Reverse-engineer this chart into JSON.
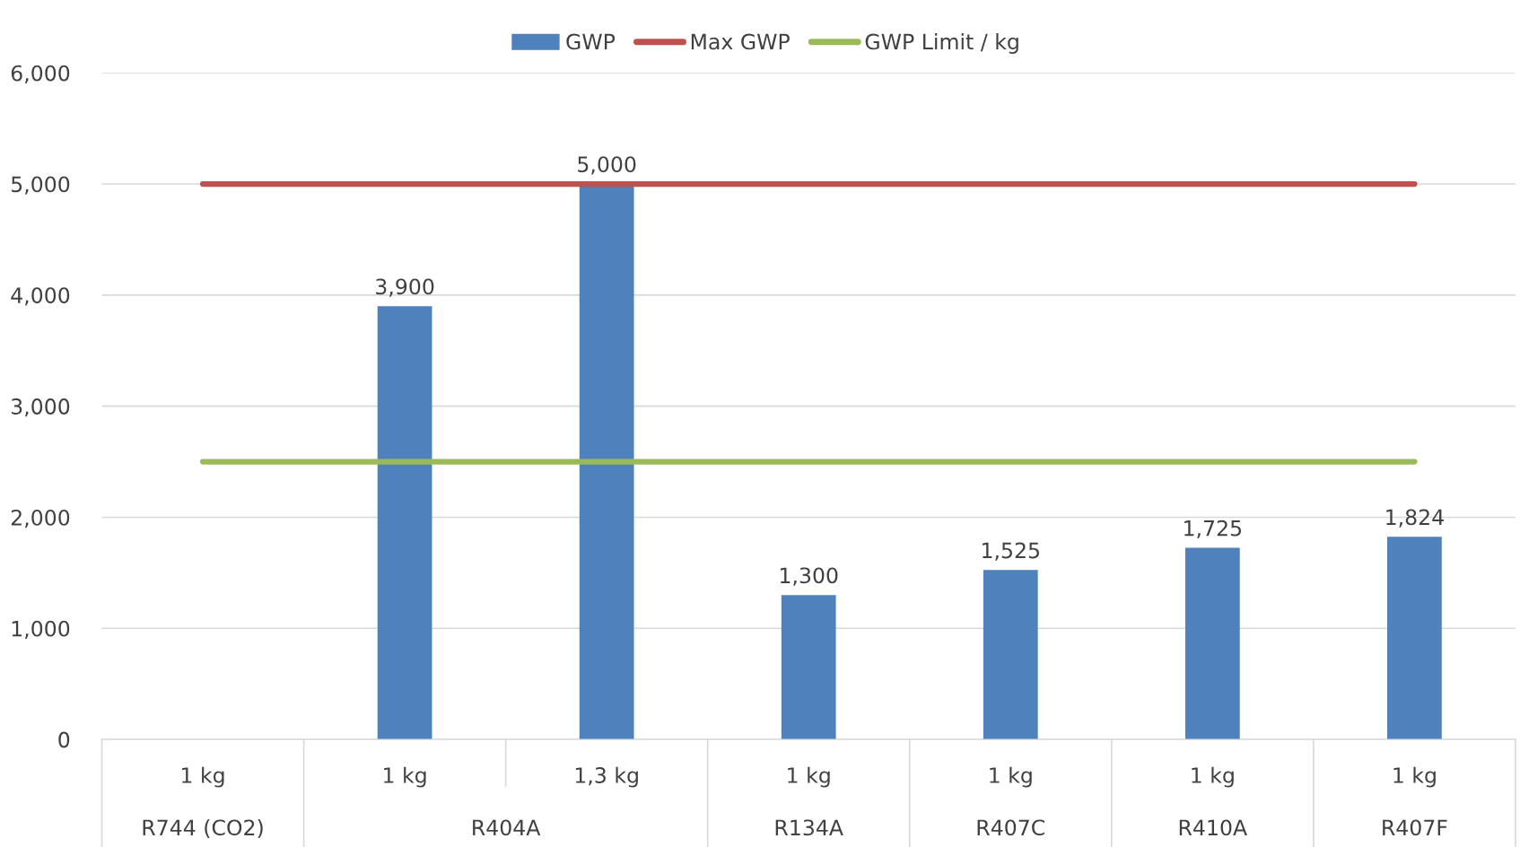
{
  "chart_data": {
    "type": "bar",
    "categories": [
      "1 kg",
      "1 kg",
      "1,3 kg",
      "1 kg",
      "1 kg",
      "1 kg",
      "1 kg"
    ],
    "annotations": [
      "R744 (CO2)",
      "R404A",
      "R134A",
      "R407C",
      "R410A",
      "R407F"
    ],
    "series": [
      {
        "name": "GWP",
        "color": "#4f81bd",
        "values": [
          null,
          3900,
          5000,
          1300,
          1525,
          1725,
          1824
        ],
        "value_labels": [
          null,
          "3,900",
          "5,000",
          "1,300",
          "1,525",
          "1,725",
          "1,824"
        ]
      },
      {
        "name": "Max GWP",
        "type": "line",
        "color": "#c0504d",
        "values": [
          5000,
          5000,
          5000,
          5000,
          5000,
          5000,
          5000
        ]
      },
      {
        "name": "GWP Limit / kg",
        "type": "line",
        "color": "#9bbb59",
        "values": [
          2500,
          2500,
          2500,
          2500,
          2500,
          2500,
          2500
        ]
      }
    ],
    "ylim": [
      0,
      6000
    ],
    "yticks": [
      {
        "value": 0,
        "label": "0"
      },
      {
        "value": 1000,
        "label": "1,000"
      },
      {
        "value": 2000,
        "label": "2,000"
      },
      {
        "value": 3000,
        "label": "3,000"
      },
      {
        "value": 4000,
        "label": "4,000"
      },
      {
        "value": 5000,
        "label": "5,000"
      },
      {
        "value": 6000,
        "label": "6,000"
      }
    ],
    "grid": "y",
    "legend": "top",
    "marker": "none"
  }
}
